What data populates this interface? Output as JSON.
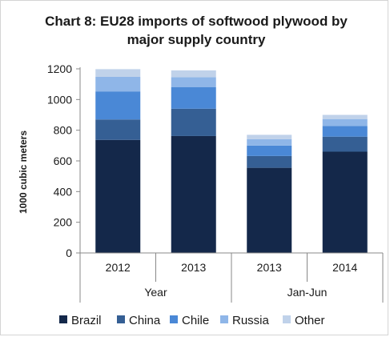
{
  "chart_data": {
    "type": "bar",
    "stacked": true,
    "title": "Chart 8: EU28 imports of softwood plywood by major supply country",
    "title_lines": [
      "Chart 8: EU28 imports of softwood plywood by",
      "major supply country"
    ],
    "xlabel": "",
    "ylabel": "1000 cubic meters",
    "ylim": [
      0,
      1200
    ],
    "yticks": [
      0,
      200,
      400,
      600,
      800,
      1000,
      1200
    ],
    "categories": [
      "2012",
      "2013",
      "2013",
      "2014"
    ],
    "category_groups": [
      {
        "label": "Year",
        "categories": [
          "2012",
          "2013"
        ]
      },
      {
        "label": "Jan-Jun",
        "categories": [
          "2013",
          "2014"
        ]
      }
    ],
    "grid": false,
    "legend_position": "bottom",
    "series": [
      {
        "name": "Brazil",
        "color": "#14284a",
        "values": [
          737,
          762,
          555,
          660
        ]
      },
      {
        "name": "China",
        "color": "#355f94",
        "values": [
          133,
          178,
          77,
          98
        ]
      },
      {
        "name": "Chile",
        "color": "#4a88d6",
        "values": [
          183,
          140,
          68,
          70
        ]
      },
      {
        "name": "Russia",
        "color": "#8fb6e8",
        "values": [
          95,
          65,
          42,
          45
        ]
      },
      {
        "name": "Other",
        "color": "#c0d2ea",
        "values": [
          50,
          45,
          28,
          27
        ]
      }
    ]
  }
}
